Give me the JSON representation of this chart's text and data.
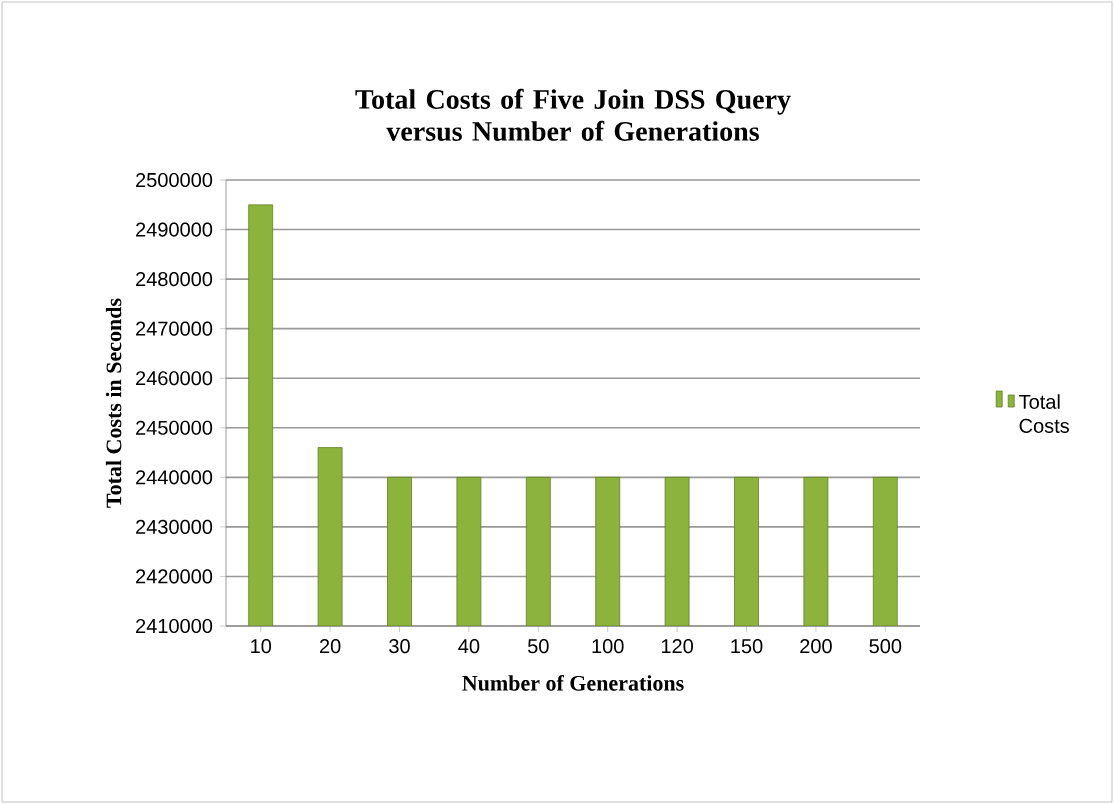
{
  "chart_data": {
    "type": "bar",
    "title": "Total Costs of Five Join DSS Query versus Number of Generations",
    "xlabel": "Number of Generations",
    "ylabel": "Total Costs in Seconds",
    "categories": [
      "10",
      "20",
      "30",
      "40",
      "50",
      "100",
      "120",
      "150",
      "200",
      "500"
    ],
    "series": [
      {
        "name": "Total Costs",
        "color": "#8cb43c",
        "values": [
          2495000,
          2446000,
          2440000,
          2440000,
          2440000,
          2440000,
          2440000,
          2440000,
          2440000,
          2440000
        ]
      }
    ],
    "ylim": [
      2410000,
      2500000
    ],
    "yticks": [
      2410000,
      2420000,
      2430000,
      2440000,
      2450000,
      2460000,
      2470000,
      2480000,
      2490000,
      2500000
    ],
    "grid": "y",
    "legend": "right"
  }
}
